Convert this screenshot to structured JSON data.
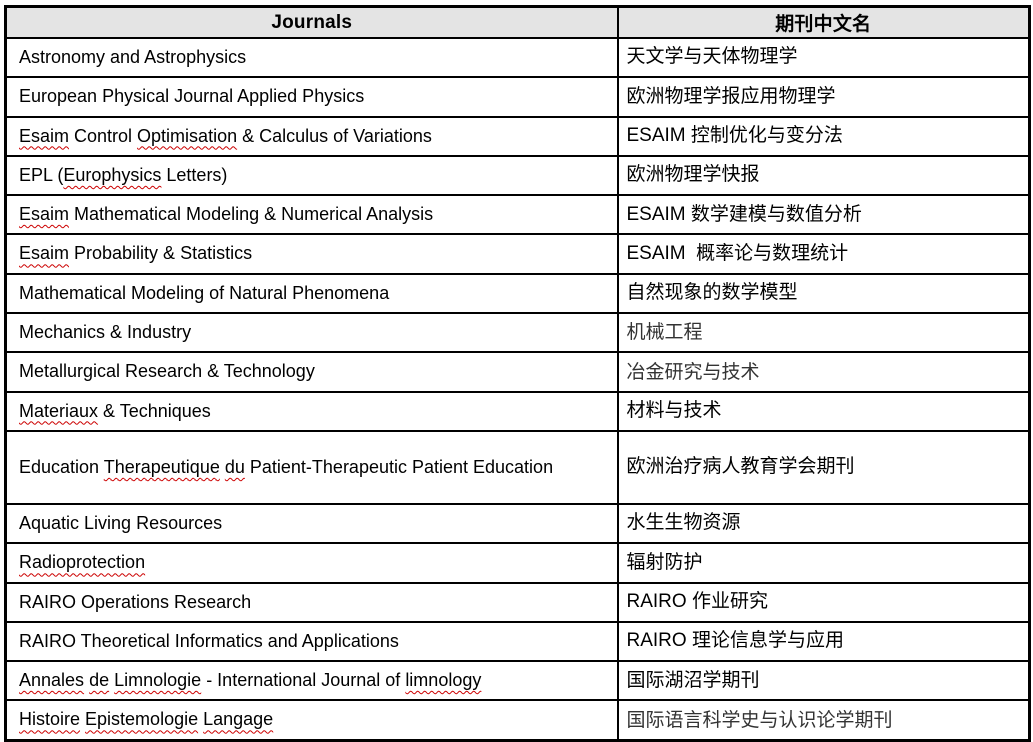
{
  "colors": {
    "header_bg": "#e4e4e4",
    "border": "#000000",
    "text": "#000000",
    "spellcheck_squiggle": "#cc0000"
  },
  "table": {
    "header": {
      "en": "Journals",
      "zh": "期刊中文名"
    },
    "rows": [
      {
        "en": [
          {
            "text": "Astronomy and Astrophysics",
            "misspelled": false
          }
        ],
        "zh": "天文学与天体物理学",
        "zh_light": false,
        "tall": false
      },
      {
        "en": [
          {
            "text": "European Physical Journal Applied Physics",
            "misspelled": false
          }
        ],
        "zh": "欧洲物理学报应用物理学",
        "zh_light": false,
        "tall": false
      },
      {
        "en": [
          {
            "text": "Esaim",
            "misspelled": true
          },
          {
            "text": " Control ",
            "misspelled": false
          },
          {
            "text": "Optimisation",
            "misspelled": true
          },
          {
            "text": " & Calculus of Variations",
            "misspelled": false
          }
        ],
        "zh": "ESAIM 控制优化与变分法",
        "zh_light": false,
        "tall": false
      },
      {
        "en": [
          {
            "text": "EPL (",
            "misspelled": false
          },
          {
            "text": "Europhysics",
            "misspelled": true
          },
          {
            "text": " Letters)",
            "misspelled": false
          }
        ],
        "zh": "欧洲物理学快报",
        "zh_light": false,
        "tall": false
      },
      {
        "en": [
          {
            "text": "Esaim",
            "misspelled": true
          },
          {
            "text": " Mathematical Modeling & Numerical Analysis",
            "misspelled": false
          }
        ],
        "zh": "ESAIM 数学建模与数值分析",
        "zh_light": false,
        "tall": false
      },
      {
        "en": [
          {
            "text": "Esaim",
            "misspelled": true
          },
          {
            "text": " Probability & Statistics",
            "misspelled": false
          }
        ],
        "zh": "ESAIM  概率论与数理统计",
        "zh_light": false,
        "tall": false
      },
      {
        "en": [
          {
            "text": "Mathematical Modeling of Natural Phenomena",
            "misspelled": false
          }
        ],
        "zh": "自然现象的数学模型",
        "zh_light": false,
        "tall": false
      },
      {
        "en": [
          {
            "text": "Mechanics & Industry",
            "misspelled": false
          }
        ],
        "zh": "机械工程",
        "zh_light": true,
        "tall": false
      },
      {
        "en": [
          {
            "text": "Metallurgical Research & Technology",
            "misspelled": false
          }
        ],
        "zh": "冶金研究与技术",
        "zh_light": true,
        "tall": false
      },
      {
        "en": [
          {
            "text": "Materiaux",
            "misspelled": true
          },
          {
            "text": " & Techniques",
            "misspelled": false
          }
        ],
        "zh": "材料与技术",
        "zh_light": false,
        "tall": false
      },
      {
        "en": [
          {
            "text": "Education ",
            "misspelled": false
          },
          {
            "text": "Therapeutique",
            "misspelled": true
          },
          {
            "text": " ",
            "misspelled": false
          },
          {
            "text": "du",
            "misspelled": true
          },
          {
            "text": " Patient-Therapeutic Patient Education",
            "misspelled": false
          }
        ],
        "zh": "欧洲治疗病人教育学会期刊",
        "zh_light": false,
        "tall": true
      },
      {
        "en": [
          {
            "text": "Aquatic Living Resources",
            "misspelled": false
          }
        ],
        "zh": "水生生物资源",
        "zh_light": false,
        "tall": false
      },
      {
        "en": [
          {
            "text": "Radioprotection",
            "misspelled": true
          }
        ],
        "zh": "辐射防护",
        "zh_light": false,
        "tall": false
      },
      {
        "en": [
          {
            "text": "RAIRO Operations Research",
            "misspelled": false
          }
        ],
        "zh": "RAIRO 作业研究",
        "zh_light": false,
        "tall": false
      },
      {
        "en": [
          {
            "text": "RAIRO Theoretical Informatics and Applications",
            "misspelled": false
          }
        ],
        "zh": "RAIRO 理论信息学与应用",
        "zh_light": false,
        "tall": false
      },
      {
        "en": [
          {
            "text": "Annales",
            "misspelled": true
          },
          {
            "text": " ",
            "misspelled": false
          },
          {
            "text": "de",
            "misspelled": true
          },
          {
            "text": " ",
            "misspelled": false
          },
          {
            "text": "Limnologie",
            "misspelled": true
          },
          {
            "text": " - International Journal of ",
            "misspelled": false
          },
          {
            "text": "limnology",
            "misspelled": true
          }
        ],
        "zh": "国际湖沼学期刊",
        "zh_light": false,
        "tall": false
      },
      {
        "en": [
          {
            "text": "Histoire",
            "misspelled": true
          },
          {
            "text": " ",
            "misspelled": false
          },
          {
            "text": "Epistemologie",
            "misspelled": true
          },
          {
            "text": " ",
            "misspelled": false
          },
          {
            "text": "Langage",
            "misspelled": true
          }
        ],
        "zh": "国际语言科学史与认识论学期刊",
        "zh_light": true,
        "tall": false
      }
    ]
  }
}
